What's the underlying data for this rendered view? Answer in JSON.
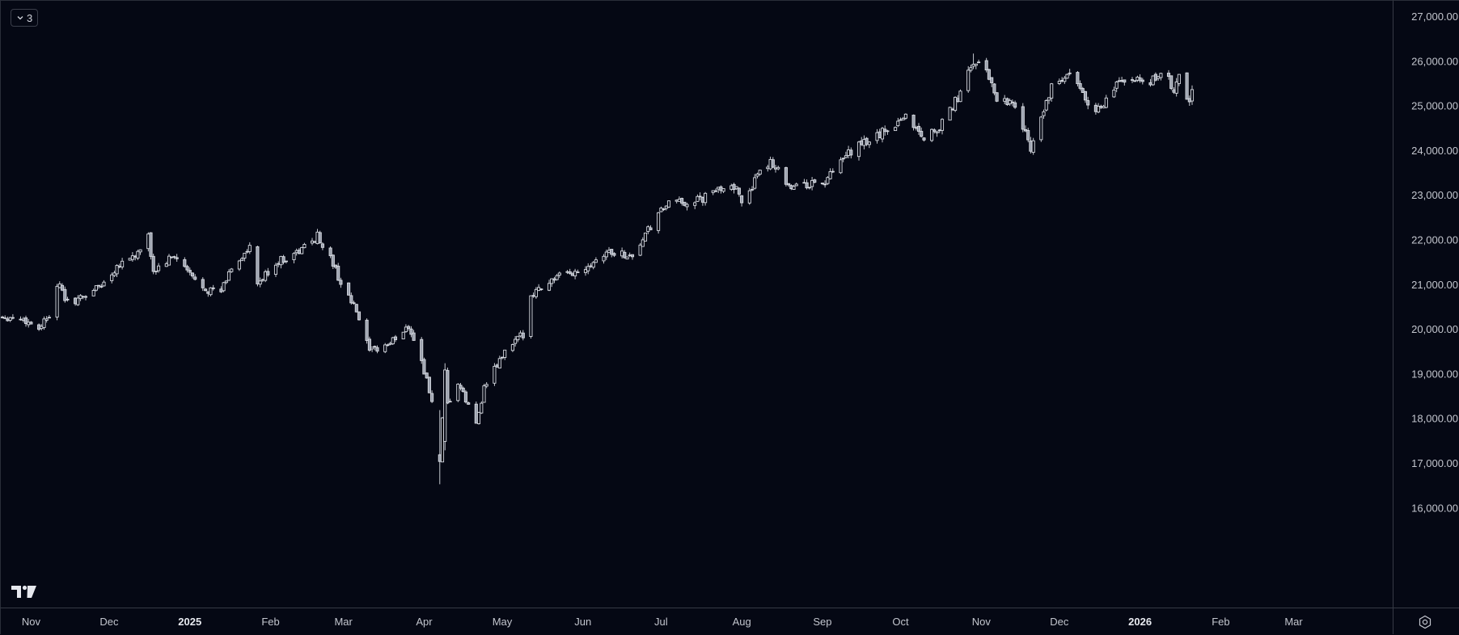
{
  "toolbar": {
    "collapse_label": "3",
    "collapse_icon": "chevron-down-icon"
  },
  "colors": {
    "background": "#050814",
    "candle_outline": "#d9dce3",
    "axis_text": "#c3c6ce",
    "grid": "none"
  },
  "price_scale": {
    "labels": [
      "27,000.00",
      "26,000.00",
      "25,000.00",
      "24,000.00",
      "23,000.00",
      "22,000.00",
      "21,000.00",
      "20,000.00",
      "19,000.00",
      "18,000.00",
      "17,000.00",
      "16,000.00"
    ]
  },
  "time_scale": {
    "labels": [
      {
        "text": "Nov",
        "date": "2024-11-01",
        "bold": false
      },
      {
        "text": "Dec",
        "date": "2024-12-01",
        "bold": false
      },
      {
        "text": "2025",
        "date": "2025-01-01",
        "bold": true
      },
      {
        "text": "Feb",
        "date": "2025-02-01",
        "bold": false
      },
      {
        "text": "Mar",
        "date": "2025-03-01",
        "bold": false
      },
      {
        "text": "Apr",
        "date": "2025-04-01",
        "bold": false
      },
      {
        "text": "May",
        "date": "2025-05-01",
        "bold": false
      },
      {
        "text": "Jun",
        "date": "2025-06-01",
        "bold": false
      },
      {
        "text": "Jul",
        "date": "2025-07-01",
        "bold": false
      },
      {
        "text": "Aug",
        "date": "2025-08-01",
        "bold": false
      },
      {
        "text": "Sep",
        "date": "2025-09-01",
        "bold": false
      },
      {
        "text": "Oct",
        "date": "2025-10-01",
        "bold": false
      },
      {
        "text": "Nov",
        "date": "2025-11-01",
        "bold": false
      },
      {
        "text": "Dec",
        "date": "2025-12-01",
        "bold": false
      },
      {
        "text": "2026",
        "date": "2026-01-01",
        "bold": true
      },
      {
        "text": "Feb",
        "date": "2026-02-01",
        "bold": false
      },
      {
        "text": "Mar",
        "date": "2026-03-01",
        "bold": false
      }
    ]
  },
  "chart_data": {
    "type": "candlestick",
    "ylim": [
      15800,
      27200
    ],
    "xlim": [
      "2024-10-21",
      "2026-03-31"
    ],
    "grid": false,
    "candle_style": "hollow white outlines",
    "anchors": [
      [
        "2024-10-21",
        20300
      ],
      [
        "2024-10-28",
        20250
      ],
      [
        "2024-11-04",
        20050
      ],
      [
        "2024-11-08",
        20350
      ],
      [
        "2024-11-11",
        21050
      ],
      [
        "2024-11-15",
        20600
      ],
      [
        "2024-11-20",
        20700
      ],
      [
        "2024-11-29",
        21050
      ],
      [
        "2024-12-05",
        21500
      ],
      [
        "2024-12-12",
        21700
      ],
      [
        "2024-12-16",
        22050
      ],
      [
        "2024-12-18",
        21300
      ],
      [
        "2024-12-26",
        21650
      ],
      [
        "2025-01-03",
        21100
      ],
      [
        "2025-01-08",
        20900
      ],
      [
        "2025-01-13",
        20850
      ],
      [
        "2025-01-17",
        21400
      ],
      [
        "2025-01-24",
        21800
      ],
      [
        "2025-01-27",
        21000
      ],
      [
        "2025-02-03",
        21500
      ],
      [
        "2025-02-12",
        21750
      ],
      [
        "2025-02-19",
        22100
      ],
      [
        "2025-02-24",
        21600
      ],
      [
        "2025-02-28",
        21050
      ],
      [
        "2025-03-06",
        20400
      ],
      [
        "2025-03-11",
        19500
      ],
      [
        "2025-03-19",
        19700
      ],
      [
        "2025-03-26",
        20100
      ],
      [
        "2025-03-31",
        19300
      ],
      [
        "2025-04-04",
        18400
      ],
      [
        "2025-04-07",
        17000
      ],
      [
        "2025-04-09",
        18900
      ],
      [
        "2025-04-10",
        18300
      ],
      [
        "2025-04-14",
        18800
      ],
      [
        "2025-04-21",
        17900
      ],
      [
        "2025-04-24",
        18700
      ],
      [
        "2025-05-02",
        19500
      ],
      [
        "2025-05-09",
        19900
      ],
      [
        "2025-05-12",
        20800
      ],
      [
        "2025-05-21",
        21150
      ],
      [
        "2025-05-30",
        21300
      ],
      [
        "2025-06-10",
        21750
      ],
      [
        "2025-06-20",
        21650
      ],
      [
        "2025-06-27",
        22300
      ],
      [
        "2025-07-03",
        22800
      ],
      [
        "2025-07-16",
        22900
      ],
      [
        "2025-07-28",
        23300
      ],
      [
        "2025-08-01",
        22900
      ],
      [
        "2025-08-12",
        23800
      ],
      [
        "2025-08-20",
        23200
      ],
      [
        "2025-09-02",
        23300
      ],
      [
        "2025-09-12",
        24000
      ],
      [
        "2025-09-25",
        24450
      ],
      [
        "2025-10-03",
        24800
      ],
      [
        "2025-10-10",
        24300
      ],
      [
        "2025-10-17",
        24600
      ],
      [
        "2025-10-24",
        25300
      ],
      [
        "2025-10-29",
        26000
      ],
      [
        "2025-11-03",
        25800
      ],
      [
        "2025-11-07",
        25200
      ],
      [
        "2025-11-13",
        25100
      ],
      [
        "2025-11-20",
        24100
      ],
      [
        "2025-11-28",
        25400
      ],
      [
        "2025-12-05",
        25700
      ],
      [
        "2025-12-12",
        25100
      ],
      [
        "2025-12-17",
        24900
      ],
      [
        "2025-12-24",
        25600
      ],
      [
        "2026-01-05",
        25500
      ],
      [
        "2026-01-09",
        25800
      ],
      [
        "2026-01-14",
        25400
      ],
      [
        "2026-01-16",
        25650
      ],
      [
        "2026-01-20",
        25050
      ],
      [
        "2026-01-21",
        25300
      ]
    ],
    "range": {
      "high": 26180,
      "low": 16540
    }
  }
}
